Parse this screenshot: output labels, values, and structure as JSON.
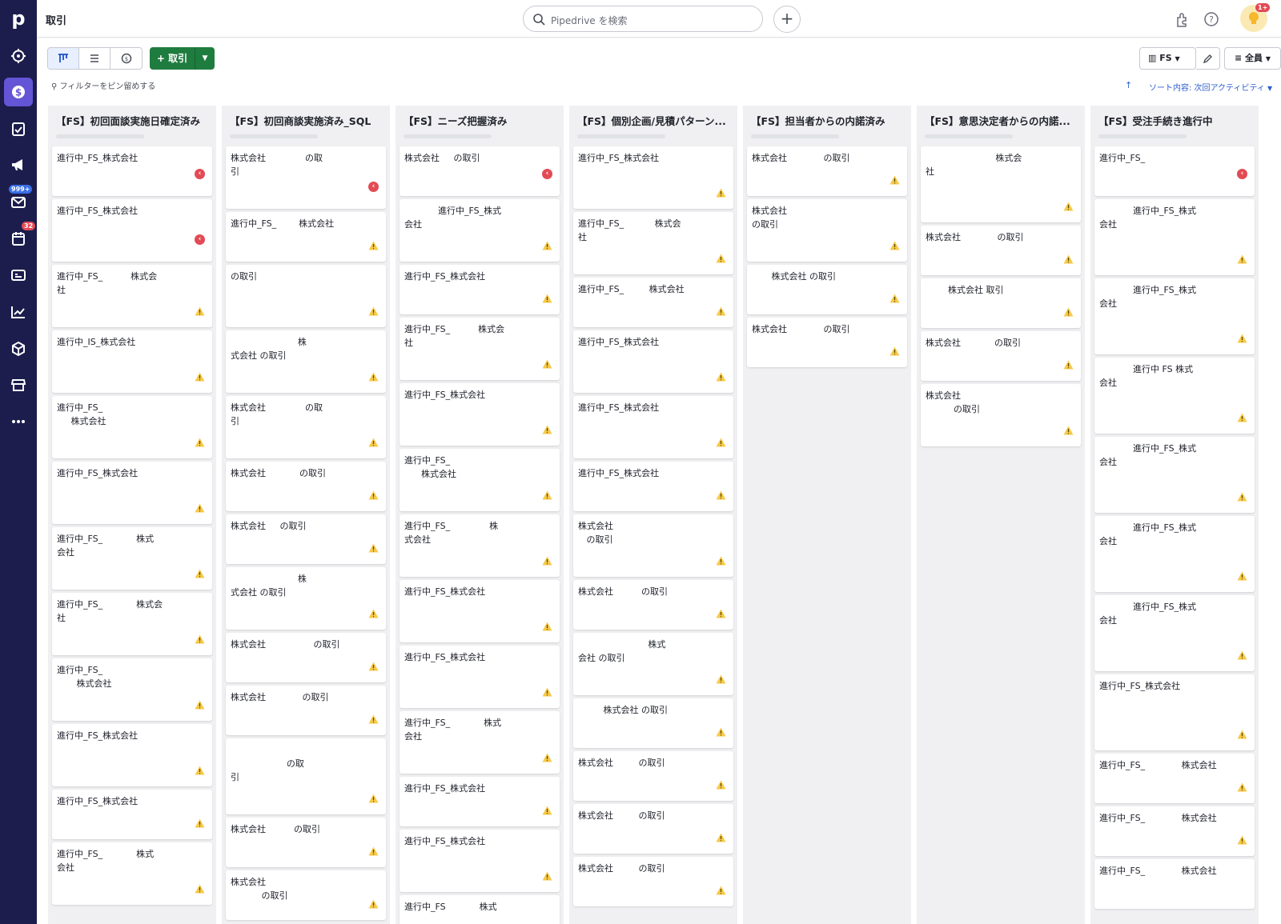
{
  "app": {
    "page_title": "取引",
    "search_placeholder": "Pipedrive を検索",
    "plus": "+",
    "avatar_badge": "1+"
  },
  "sidebar": {
    "mail_badge": "999+",
    "activity_badge": "32",
    "logo": "p"
  },
  "toolbar": {
    "add_label": "+ 取引",
    "pin_filter": "フィルターをピン留めする",
    "pipeline": "FS",
    "owner": "全員",
    "sort": "ソート内容: 次回アクティビティ"
  },
  "columns": [
    {
      "title": "【FS】初回面談実施日確定済み",
      "cards": [
        {
          "text": "進行中_FS_株式会社",
          "h": 62,
          "icon": "red"
        },
        {
          "text": "進行中_FS_株式会社",
          "h": 78,
          "icon": "red"
        },
        {
          "text": "進行中_FS_          株式会\n社",
          "h": 78,
          "icon": "warn"
        },
        {
          "text": "進行中_IS_株式会社",
          "h": 78,
          "icon": "warn"
        },
        {
          "text": "進行中_FS_\n     株式会社",
          "h": 78,
          "icon": "warn"
        },
        {
          "text": "進行中_FS_株式会社",
          "h": 78,
          "icon": "warn"
        },
        {
          "text": "進行中_FS_            株式\n会社",
          "h": 78,
          "icon": "warn"
        },
        {
          "text": "進行中_FS_            株式会\n社",
          "h": 78,
          "icon": "warn"
        },
        {
          "text": "進行中_FS_\n       株式会社",
          "h": 78,
          "icon": "warn"
        },
        {
          "text": "進行中_FS_株式会社",
          "h": 78,
          "icon": "warn"
        },
        {
          "text": "進行中_FS_株式会社",
          "h": 62,
          "icon": "warn"
        },
        {
          "text": "進行中_FS_            株式\n会社",
          "h": 78,
          "icon": "warn"
        }
      ]
    },
    {
      "title": "【FS】初回商談実施済み_SQL",
      "cards": [
        {
          "text": "株式会社              の取\n引",
          "h": 78,
          "icon": "red"
        },
        {
          "text": "進行中_FS_        株式会社",
          "h": 62,
          "icon": "warn"
        },
        {
          "text": "の取引",
          "h": 78,
          "icon": "warn"
        },
        {
          "text": "                        株\n式会社 の取引",
          "h": 78,
          "icon": "warn"
        },
        {
          "text": "株式会社              の取\n引",
          "h": 78,
          "icon": "warn"
        },
        {
          "text": "株式会社            の取引",
          "h": 62,
          "icon": "warn"
        },
        {
          "text": "株式会社     の取引",
          "h": 62,
          "icon": "warn"
        },
        {
          "text": "                        株\n式会社 の取引",
          "h": 78,
          "icon": "warn"
        },
        {
          "text": "株式会社                 の取引",
          "h": 62,
          "icon": "warn"
        },
        {
          "text": "株式会社             の取引",
          "h": 62,
          "icon": "warn"
        },
        {
          "text": "\n                    の取\n引",
          "h": 95,
          "icon": "warn"
        },
        {
          "text": "株式会社          の取引",
          "h": 62,
          "icon": "warn"
        },
        {
          "text": "株式会社\n           の取引",
          "h": 62,
          "icon": "warn"
        }
      ]
    },
    {
      "title": "【FS】ニーズ把握済み",
      "cards": [
        {
          "text": "株式会社     の取引",
          "h": 62,
          "icon": "red"
        },
        {
          "text": "            進行中_FS_株式\n会社",
          "h": 78,
          "icon": "warn"
        },
        {
          "text": "進行中_FS_株式会社",
          "h": 62,
          "icon": "warn"
        },
        {
          "text": "進行中_FS_          株式会\n社",
          "h": 78,
          "icon": "warn"
        },
        {
          "text": "進行中_FS_株式会社",
          "h": 78,
          "icon": "warn"
        },
        {
          "text": "進行中_FS_\n      株式会社",
          "h": 78,
          "icon": "warn"
        },
        {
          "text": "進行中_FS_              株\n式会社",
          "h": 78,
          "icon": "warn"
        },
        {
          "text": "進行中_FS_株式会社",
          "h": 78,
          "icon": "warn"
        },
        {
          "text": "進行中_FS_株式会社",
          "h": 78,
          "icon": "warn"
        },
        {
          "text": "進行中_FS_            株式\n会社",
          "h": 78,
          "icon": "warn"
        },
        {
          "text": "進行中_FS_株式会社",
          "h": 62,
          "icon": "warn"
        },
        {
          "text": "進行中_FS_株式会社",
          "h": 78,
          "icon": "warn"
        },
        {
          "text": "進行中_FS            株式",
          "h": 62,
          "icon": "none"
        }
      ]
    },
    {
      "title": "【FS】個別企画/見積パターン...",
      "cards": [
        {
          "text": "進行中_FS_株式会社",
          "h": 78,
          "icon": "warn"
        },
        {
          "text": "進行中_FS_           株式会\n社",
          "h": 78,
          "icon": "warn"
        },
        {
          "text": "進行中_FS_         株式会社",
          "h": 62,
          "icon": "warn"
        },
        {
          "text": "進行中_FS_株式会社",
          "h": 78,
          "icon": "warn"
        },
        {
          "text": "進行中_FS_株式会社",
          "h": 78,
          "icon": "warn"
        },
        {
          "text": "進行中_FS_株式会社",
          "h": 62,
          "icon": "warn"
        },
        {
          "text": "株式会社\n   の取引",
          "h": 78,
          "icon": "warn"
        },
        {
          "text": "株式会社          の取引",
          "h": 62,
          "icon": "warn"
        },
        {
          "text": "                         株式\n会社 の取引",
          "h": 78,
          "icon": "warn"
        },
        {
          "text": "         株式会社 の取引",
          "h": 62,
          "icon": "warn"
        },
        {
          "text": "株式会社         の取引",
          "h": 62,
          "icon": "warn"
        },
        {
          "text": "株式会社         の取引",
          "h": 62,
          "icon": "warn"
        },
        {
          "text": "株式会社         の取引",
          "h": 62,
          "icon": "warn"
        }
      ]
    },
    {
      "title": "【FS】担当者からの内諾済み",
      "cards": [
        {
          "text": "株式会社             の取引",
          "h": 62,
          "icon": "warn"
        },
        {
          "text": "株式会社\nの取引",
          "h": 78,
          "icon": "warn"
        },
        {
          "text": "       株式会社 の取引",
          "h": 62,
          "icon": "warn"
        },
        {
          "text": "株式会社             の取引",
          "h": 62,
          "icon": "warn"
        }
      ]
    },
    {
      "title": "【FS】意思決定者からの内諾...",
      "cards": [
        {
          "text": "                         株式会\n社",
          "h": 95,
          "icon": "warn"
        },
        {
          "text": "株式会社             の取引",
          "h": 62,
          "icon": "warn"
        },
        {
          "text": "        株式会社 取引",
          "h": 62,
          "icon": "warn"
        },
        {
          "text": "株式会社            の取引",
          "h": 62,
          "icon": "warn"
        },
        {
          "text": "株式会社\n          の取引",
          "h": 78,
          "icon": "warn"
        }
      ]
    },
    {
      "title": "【FS】受注手続き進行中",
      "cards": [
        {
          "text": "進行中_FS_",
          "h": 62,
          "icon": "red"
        },
        {
          "text": "            進行中_FS_株式\n会社",
          "h": 95,
          "icon": "warn"
        },
        {
          "text": "            進行中_FS_株式\n会社",
          "h": 95,
          "icon": "warn"
        },
        {
          "text": "            進行中 FS 株式\n会社",
          "h": 95,
          "icon": "warn"
        },
        {
          "text": "            進行中_FS_株式\n会社",
          "h": 95,
          "icon": "warn"
        },
        {
          "text": "            進行中_FS_株式\n会社",
          "h": 95,
          "icon": "warn"
        },
        {
          "text": "            進行中_FS_株式\n会社",
          "h": 95,
          "icon": "warn"
        },
        {
          "text": "進行中_FS_株式会社",
          "h": 95,
          "icon": "warn"
        },
        {
          "text": "進行中_FS_             株式会社",
          "h": 62,
          "icon": "warn"
        },
        {
          "text": "進行中_FS_             株式会社",
          "h": 62,
          "icon": "warn"
        },
        {
          "text": "進行中_FS_             株式会社",
          "h": 62,
          "icon": "none"
        }
      ]
    }
  ]
}
